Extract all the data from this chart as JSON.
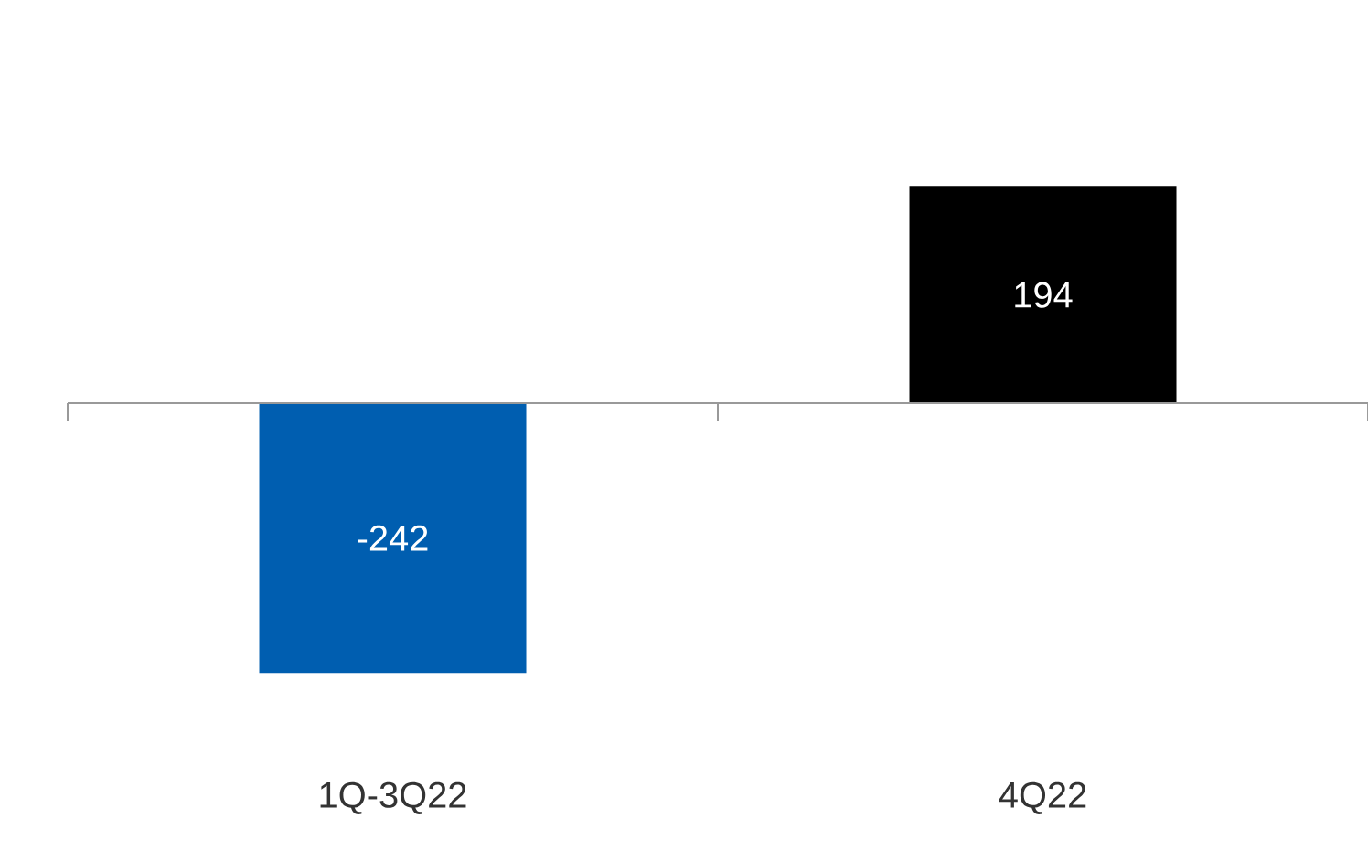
{
  "chart_data": {
    "type": "bar",
    "categories": [
      "1Q-3Q22",
      "4Q22"
    ],
    "values": [
      -242,
      194
    ],
    "colors": [
      "#005eb0",
      "#000000"
    ],
    "data_labels": true
  }
}
